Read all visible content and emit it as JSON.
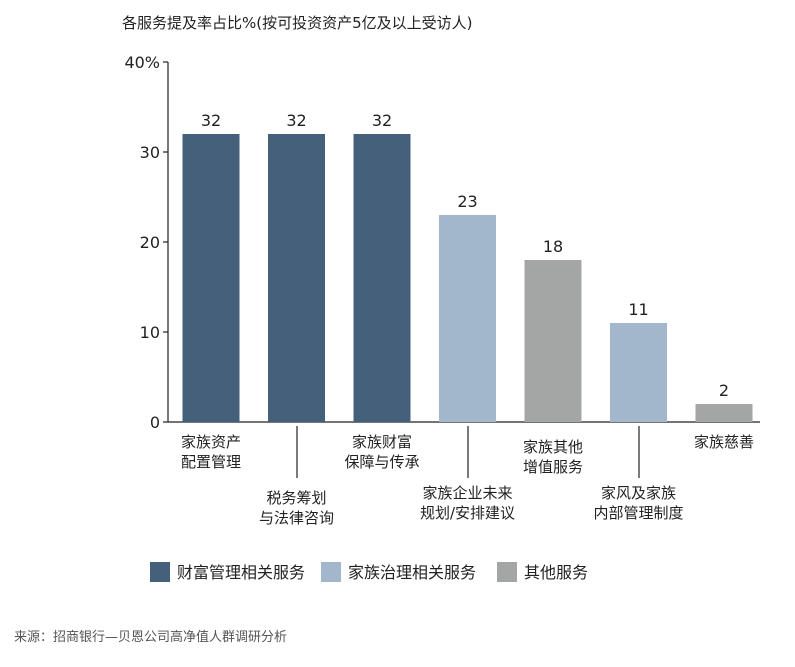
{
  "chart_data": {
    "type": "bar",
    "title": "各服务提及率占比%(按可投资资产5亿及以上受访人)",
    "ylim": [
      0,
      40
    ],
    "yticks": [
      0,
      10,
      20,
      30,
      40
    ],
    "ytick_labels": [
      "0",
      "10",
      "20",
      "30",
      "40%"
    ],
    "categories": [
      "家族资产\n配置管理",
      "税务筹划\n与法律咨询",
      "家族财富\n保障与传承",
      "家族企业未来\n规划/安排建议",
      "家族其他\n增值服务",
      "家风及家族\n内部管理制度",
      "家族慈善"
    ],
    "values": [
      32,
      32,
      32,
      23,
      18,
      11,
      2
    ],
    "groups": [
      "wealth",
      "wealth",
      "wealth",
      "governance",
      "other",
      "governance",
      "other"
    ],
    "legend": [
      {
        "key": "wealth",
        "label": "财富管理相关服务",
        "color": "#45607a"
      },
      {
        "key": "governance",
        "label": "家族治理相关服务",
        "color": "#a2b6cc"
      },
      {
        "key": "other",
        "label": "其他服务",
        "color": "#a4a6a5"
      }
    ],
    "legend_position": "bottom-left",
    "grid": false
  },
  "source": "来源：招商银行—贝恩公司高净值人群调研分析"
}
